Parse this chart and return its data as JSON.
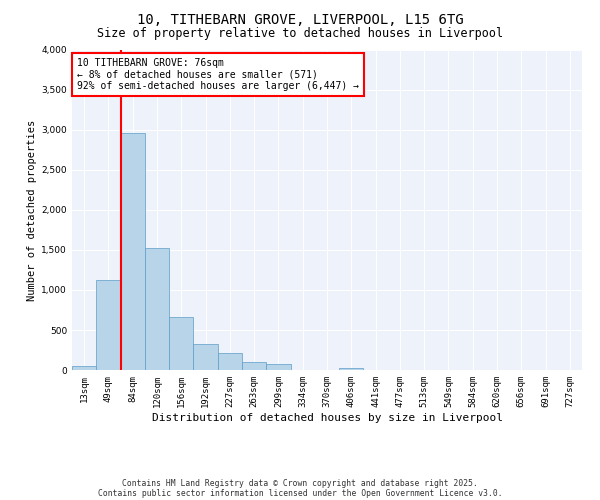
{
  "title": "10, TITHEBARN GROVE, LIVERPOOL, L15 6TG",
  "subtitle": "Size of property relative to detached houses in Liverpool",
  "xlabel": "Distribution of detached houses by size in Liverpool",
  "ylabel": "Number of detached properties",
  "bin_labels": [
    "13sqm",
    "49sqm",
    "84sqm",
    "120sqm",
    "156sqm",
    "192sqm",
    "227sqm",
    "263sqm",
    "299sqm",
    "334sqm",
    "370sqm",
    "406sqm",
    "441sqm",
    "477sqm",
    "513sqm",
    "549sqm",
    "584sqm",
    "620sqm",
    "656sqm",
    "691sqm",
    "727sqm"
  ],
  "bar_values": [
    55,
    1120,
    2960,
    1530,
    660,
    320,
    210,
    95,
    80,
    0,
    0,
    30,
    0,
    0,
    0,
    0,
    0,
    0,
    0,
    0,
    0
  ],
  "bar_color": "#b8d4e8",
  "bar_edge_color": "#5b9dc9",
  "vline_color": "red",
  "vline_x": 1.5,
  "annotation_title": "10 TITHEBARN GROVE: 76sqm",
  "annotation_line1": "← 8% of detached houses are smaller (571)",
  "annotation_line2": "92% of semi-detached houses are larger (6,447) →",
  "annotation_box_color": "white",
  "annotation_box_edge": "red",
  "ylim": [
    0,
    4000
  ],
  "yticks": [
    0,
    500,
    1000,
    1500,
    2000,
    2500,
    3000,
    3500,
    4000
  ],
  "background_color": "#edf2fb",
  "footer1": "Contains HM Land Registry data © Crown copyright and database right 2025.",
  "footer2": "Contains public sector information licensed under the Open Government Licence v3.0.",
  "title_fontsize": 10,
  "subtitle_fontsize": 8.5,
  "ylabel_fontsize": 7.5,
  "xlabel_fontsize": 8,
  "annot_fontsize": 7,
  "tick_fontsize": 6.5,
  "footer_fontsize": 5.8
}
